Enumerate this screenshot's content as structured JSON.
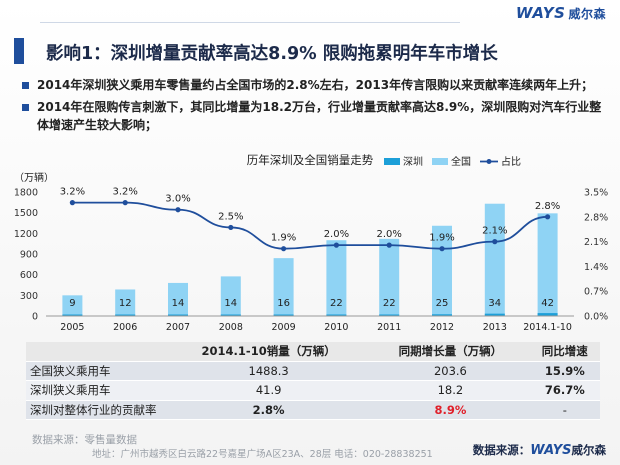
{
  "header": {
    "brand_logo": "WAYS",
    "brand_cn": "威尔森"
  },
  "title": "影响1：深圳增量贡献率高达8.9%  限购拖累明年车市增长",
  "bullets": [
    "2014年深圳狭义乘用车零售量约占全国市场的2.8%左右，2013年传言限购以来贡献率连续两年上升；",
    "2014年在限购传言刺激下，其同比增量为18.2万台，行业增量贡献率高达8.9%，深圳限购对汽车行业整体增速产生较大影响；"
  ],
  "chart_data": {
    "type": "bar",
    "title": "历年深圳及全国销量走势",
    "ylabel": "（万辆）",
    "categories": [
      "2005",
      "2006",
      "2007",
      "2008",
      "2009",
      "2010",
      "2011",
      "2012",
      "2013",
      "2014.1-10"
    ],
    "series": [
      {
        "name": "深圳",
        "type": "bar",
        "values": [
          9,
          12,
          14,
          14,
          16,
          22,
          22,
          25,
          34,
          42
        ],
        "color": "#1c9fd8"
      },
      {
        "name": "全国",
        "type": "bar",
        "values": [
          300,
          385,
          480,
          575,
          840,
          1100,
          1120,
          1310,
          1630,
          1490
        ],
        "color": "#8fd3f4"
      },
      {
        "name": "占比",
        "type": "line",
        "axis": "right",
        "values": [
          3.2,
          3.2,
          3.0,
          2.5,
          1.9,
          2.0,
          2.0,
          1.9,
          2.1,
          2.8
        ],
        "labels": [
          "3.2%",
          "3.2%",
          "3.0%",
          "2.5%",
          "1.9%",
          "2.0%",
          "2.0%",
          "1.9%",
          "2.1%",
          "2.8%"
        ],
        "color": "#1f4e9c"
      }
    ],
    "ylim": [
      0,
      1800
    ],
    "yticks": [
      "0",
      "300",
      "600",
      "900",
      "1200",
      "1500",
      "1800"
    ],
    "y2lim": [
      0,
      3.5
    ],
    "y2ticks": [
      "0.0%",
      "0.7%",
      "1.4%",
      "2.1%",
      "2.8%",
      "3.5%"
    ],
    "legend_position": "top-right"
  },
  "table": {
    "headers": [
      "",
      "2014.1-10销量（万辆）",
      "同期增长量（万辆）",
      "同比增速"
    ],
    "rows": [
      [
        "全国狭义乘用车",
        "1488.3",
        "203.6",
        "15.9%"
      ],
      [
        "深圳狭义乘用车",
        "41.9",
        "18.2",
        "76.7%"
      ],
      [
        "深圳对整体行业的贡献率",
        "2.8%",
        "8.9%",
        "-"
      ]
    ]
  },
  "source": "数据来源：零售量数据",
  "footer": {
    "address": "地址：广州市越秀区白云路22号嘉星广场A区23A、28层   电话：020-28838251",
    "source_label": "数据来源：",
    "brand_logo": "WAYS",
    "brand_cn": "威尔森"
  }
}
